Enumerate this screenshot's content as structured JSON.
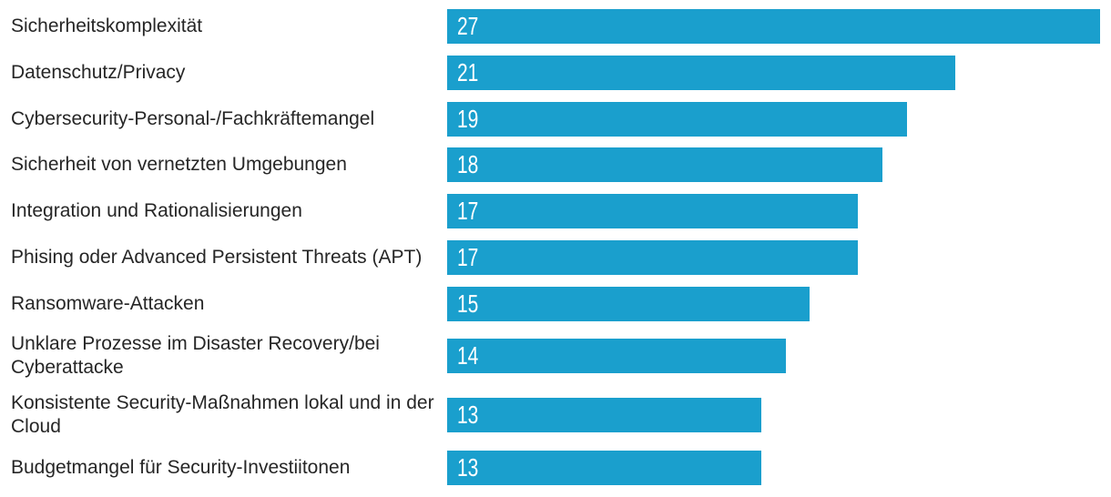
{
  "chart_data": {
    "type": "bar",
    "orientation": "horizontal",
    "title": "",
    "xlabel": "",
    "ylabel": "",
    "categories": [
      "Sicherheitskomplexität",
      "Datenschutz/Privacy",
      "Cybersecurity-Personal-/Fachkräftemangel",
      "Sicherheit von vernetzten Umgebungen",
      "Integration und Rationalisierungen",
      "Phising oder Advanced Persistent Threats (APT)",
      "Ransomware-Attacken",
      "Unklare Prozesse im Disaster Recovery/bei Cyberattacke",
      "Konsistente Security-Maßnahmen lokal und in der Cloud",
      "Budgetmangel für Security-Investiitonen"
    ],
    "values": [
      27,
      21,
      19,
      18,
      17,
      17,
      15,
      14,
      13,
      13
    ],
    "xlim": [
      0,
      27
    ],
    "grid": false,
    "legend": false,
    "value_label_position": "inside-left",
    "bar_color": "#1A9FCD",
    "value_label_color": "#FFFFFF",
    "category_label_color": "#262626",
    "background_color": "#FFFFFF"
  }
}
